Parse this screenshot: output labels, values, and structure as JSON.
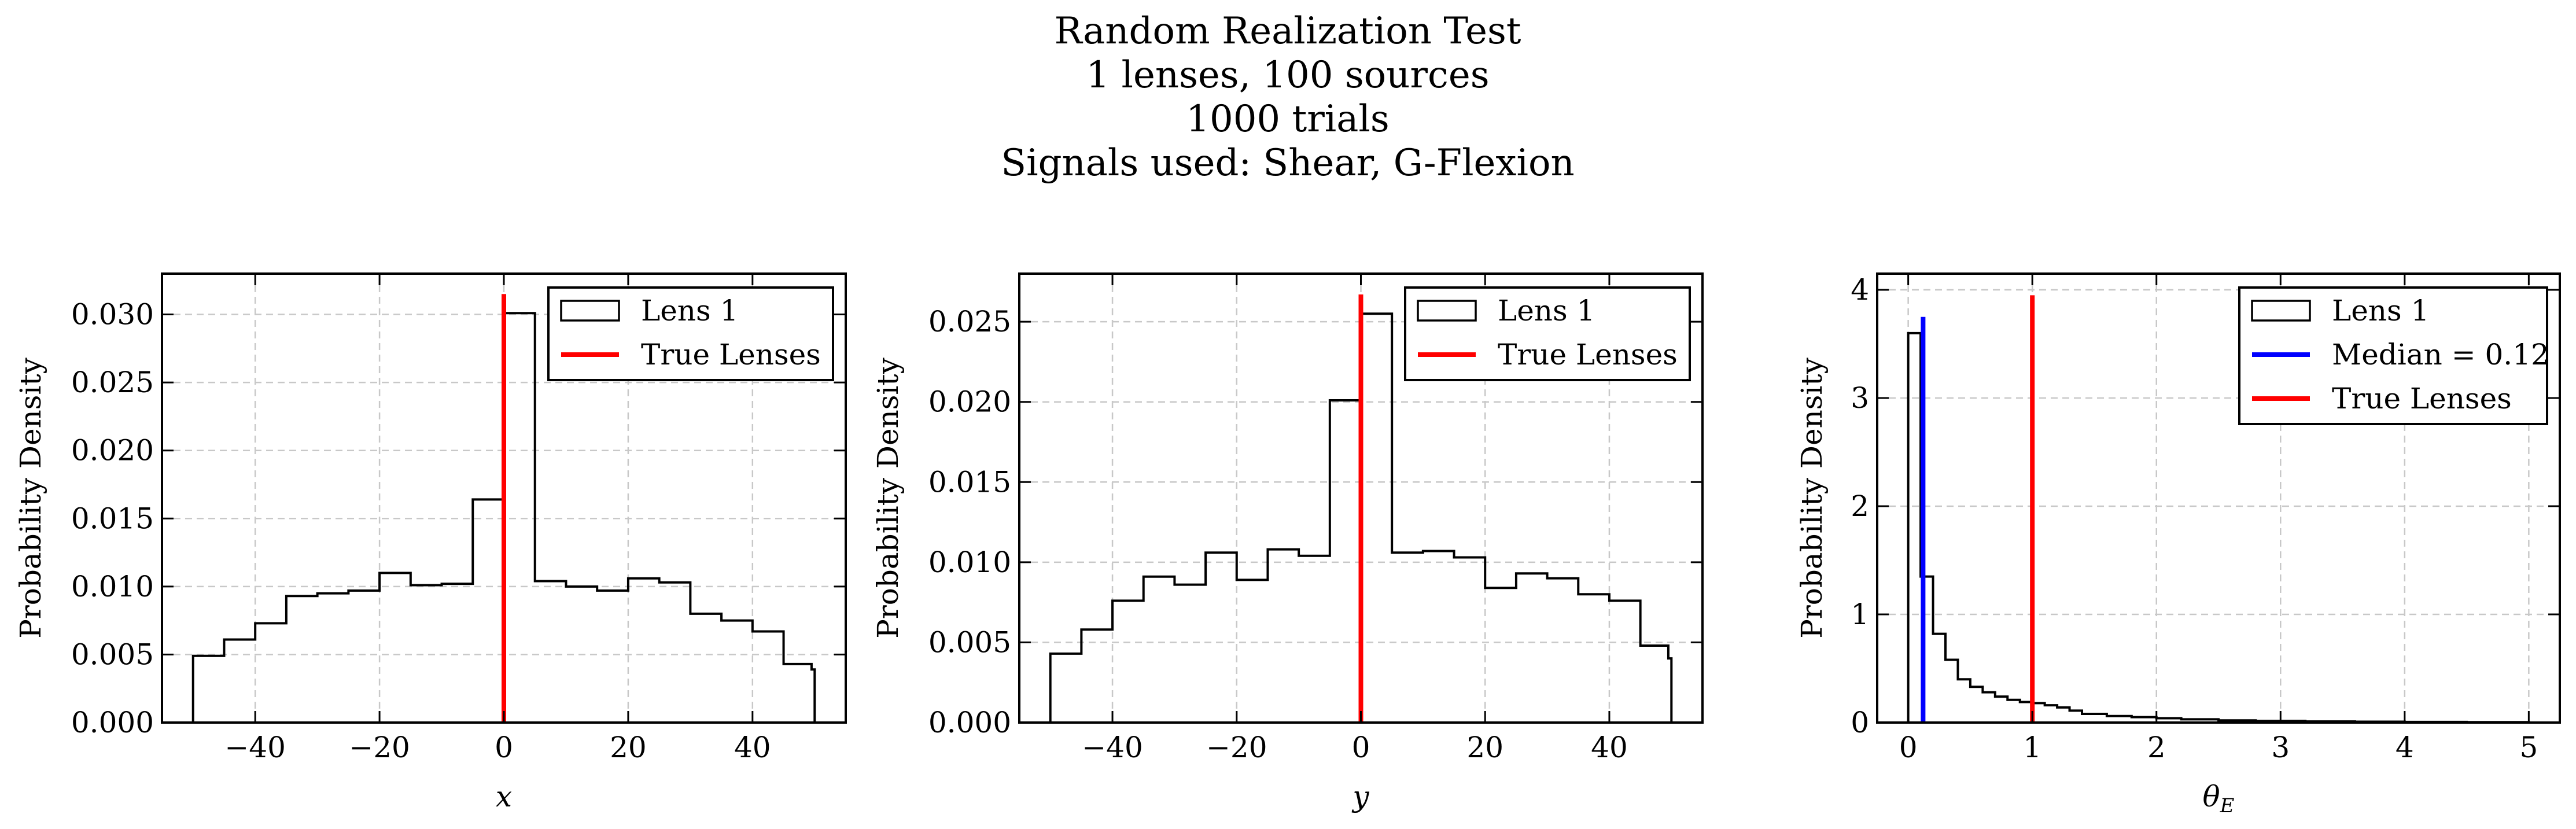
{
  "suptitle": {
    "lines": [
      "Random Realization Test",
      "1 lenses, 100 sources",
      "1000 trials",
      "Signals used: Shear, G-Flexion"
    ]
  },
  "chart_data": [
    {
      "type": "histogram",
      "xlabel": "x",
      "ylabel": "Probability Density",
      "xlim": [
        -55,
        55
      ],
      "ylim": [
        0,
        0.033
      ],
      "xticks": [
        -40,
        -20,
        0,
        20,
        40
      ],
      "xtick_labels": [
        "−40",
        "−20",
        "0",
        "20",
        "40"
      ],
      "yticks": [
        0,
        0.005,
        0.01,
        0.015,
        0.02,
        0.025,
        0.03
      ],
      "ytick_labels": [
        "0.000",
        "0.005",
        "0.010",
        "0.015",
        "0.020",
        "0.025",
        "0.030"
      ],
      "grid": true,
      "legend_position": "upper right",
      "series": [
        {
          "name": "Lens 1",
          "kind": "step",
          "color": "#000000",
          "bin_edges": [
            -50,
            -45,
            -40,
            -35,
            -30,
            -25,
            -20,
            -15,
            -10,
            -5,
            0,
            5,
            10,
            15,
            20,
            25,
            30,
            35,
            40,
            45,
            49.5,
            50
          ],
          "values": [
            0.0049,
            0.0061,
            0.0073,
            0.0093,
            0.0095,
            0.0097,
            0.011,
            0.0101,
            0.0102,
            0.0164,
            0.0301,
            0.0104,
            0.01,
            0.0097,
            0.0106,
            0.0103,
            0.008,
            0.0075,
            0.0067,
            0.0043,
            0.0039
          ]
        },
        {
          "name": "True Lenses",
          "kind": "vline",
          "color": "#ff0000",
          "x": 0,
          "y_top": 0.0315
        }
      ]
    },
    {
      "type": "histogram",
      "xlabel": "y",
      "ylabel": "Probability Density",
      "xlim": [
        -55,
        55
      ],
      "ylim": [
        0,
        0.028
      ],
      "xticks": [
        -40,
        -20,
        0,
        20,
        40
      ],
      "xtick_labels": [
        "−40",
        "−20",
        "0",
        "20",
        "40"
      ],
      "yticks": [
        0,
        0.005,
        0.01,
        0.015,
        0.02,
        0.025
      ],
      "ytick_labels": [
        "0.000",
        "0.005",
        "0.010",
        "0.015",
        "0.020",
        "0.025"
      ],
      "grid": true,
      "legend_position": "upper right",
      "series": [
        {
          "name": "Lens 1",
          "kind": "step",
          "color": "#000000",
          "bin_edges": [
            -50,
            -45,
            -40,
            -35,
            -30,
            -25,
            -20,
            -15,
            -10,
            -5,
            0,
            5,
            10,
            15,
            20,
            25,
            30,
            35,
            40,
            45,
            49.5,
            50
          ],
          "values": [
            0.0043,
            0.0058,
            0.0076,
            0.0091,
            0.0086,
            0.0106,
            0.0089,
            0.0108,
            0.0104,
            0.0201,
            0.0255,
            0.0106,
            0.0107,
            0.0103,
            0.0084,
            0.0093,
            0.009,
            0.008,
            0.0076,
            0.0048,
            0.004
          ]
        },
        {
          "name": "True Lenses",
          "kind": "vline",
          "color": "#ff0000",
          "x": 0,
          "y_top": 0.0267
        }
      ]
    },
    {
      "type": "histogram",
      "xlabel": "θE",
      "xlabel_main": "θ",
      "xlabel_sub": "E",
      "ylabel": "Probability Density",
      "xlim": [
        -0.25,
        5.25
      ],
      "ylim": [
        0,
        4.15
      ],
      "xticks": [
        0,
        1,
        2,
        3,
        4,
        5
      ],
      "xtick_labels": [
        "0",
        "1",
        "2",
        "3",
        "4",
        "5"
      ],
      "yticks": [
        0,
        1,
        2,
        3,
        4
      ],
      "ytick_labels": [
        "0",
        "1",
        "2",
        "3",
        "4"
      ],
      "grid": true,
      "legend_position": "upper right",
      "series": [
        {
          "name": "Lens 1",
          "kind": "step",
          "color": "#000000",
          "bin_edges": [
            0,
            0.1,
            0.2,
            0.3,
            0.4,
            0.5,
            0.6,
            0.7,
            0.8,
            0.9,
            1.0,
            1.1,
            1.2,
            1.3,
            1.4,
            1.6,
            1.8,
            2.0,
            2.2,
            2.5,
            2.8,
            3.2,
            3.6,
            4.0,
            4.5,
            5.0
          ],
          "values": [
            3.6,
            1.35,
            0.82,
            0.58,
            0.4,
            0.33,
            0.28,
            0.24,
            0.21,
            0.19,
            0.18,
            0.16,
            0.14,
            0.11,
            0.08,
            0.06,
            0.05,
            0.04,
            0.03,
            0.02,
            0.015,
            0.01,
            0.008,
            0.006,
            0.004
          ]
        },
        {
          "name": "Median = 0.12",
          "kind": "vline",
          "color": "#0000ff",
          "x": 0.12,
          "y_top": 3.75
        },
        {
          "name": "True Lenses",
          "kind": "vline",
          "color": "#ff0000",
          "x": 1,
          "y_top": 3.95
        }
      ]
    }
  ]
}
